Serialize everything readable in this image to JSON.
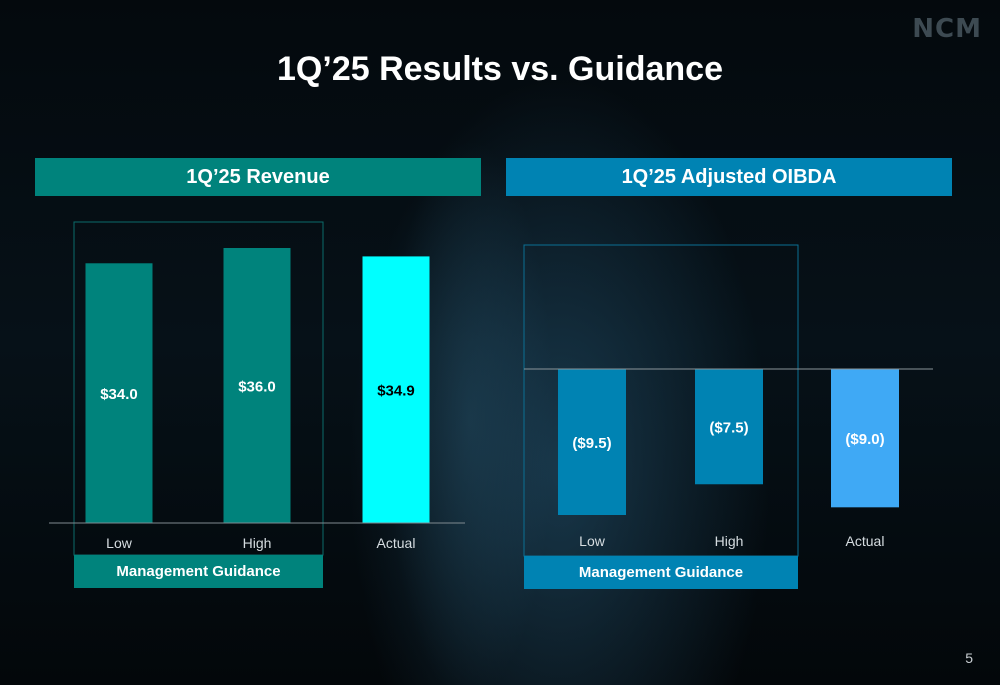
{
  "logo": "NCM",
  "title": "1Q’25 Results vs. Guidance",
  "page_number": "5",
  "colors": {
    "revenue_guidance": "#00837C",
    "revenue_actual": "#00FFFF",
    "oibda_guidance": "#0083B3",
    "oibda_actual": "#3FA9F5"
  },
  "chart_data": [
    {
      "type": "bar",
      "title": "1Q’25 Revenue",
      "categories": [
        "Low",
        "High",
        "Actual"
      ],
      "values": [
        34.0,
        36.0,
        34.9
      ],
      "data_labels": [
        "$34.0",
        "$36.0",
        "$34.9"
      ],
      "group_label": "Management Guidance",
      "group_categories": [
        "Low",
        "High"
      ],
      "grid": false
    },
    {
      "type": "bar",
      "title": "1Q’25 Adjusted OIBDA",
      "categories": [
        "Low",
        "High",
        "Actual"
      ],
      "values": [
        -9.5,
        -7.5,
        -9.0
      ],
      "data_labels": [
        "($9.5)",
        "($7.5)",
        "($9.0)"
      ],
      "group_label": "Management Guidance",
      "group_categories": [
        "Low",
        "High"
      ],
      "grid": false
    }
  ]
}
